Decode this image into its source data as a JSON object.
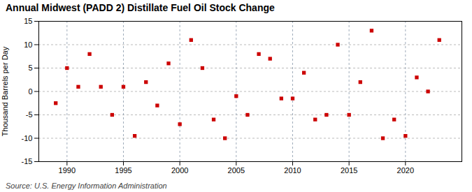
{
  "chart_data": {
    "type": "scatter",
    "title": "Annual Midwest (PADD 2) Distillate Fuel Oil Stock Change",
    "ylabel": "Thousand Barrels per Day",
    "source": "Source: U.S. Energy Information Administration",
    "x": [
      1989,
      1990,
      1991,
      1992,
      1993,
      1994,
      1995,
      1996,
      1997,
      1998,
      1999,
      2000,
      2001,
      2002,
      2003,
      2004,
      2005,
      2006,
      2007,
      2008,
      2009,
      2010,
      2011,
      2012,
      2013,
      2014,
      2015,
      2016,
      2017,
      2018,
      2019,
      2020,
      2021,
      2022,
      2023
    ],
    "values": [
      -2.5,
      5.0,
      1.0,
      8.0,
      1.0,
      -5.0,
      1.0,
      -9.5,
      2.0,
      -3.0,
      6.0,
      -7.0,
      11.0,
      5.0,
      -6.0,
      -10.0,
      -1.0,
      -5.0,
      8.0,
      7.0,
      -1.5,
      -1.5,
      4.0,
      -6.0,
      -5.0,
      10.0,
      -5.0,
      2.0,
      13.0,
      -10.0,
      -6.0,
      -9.5,
      3.0,
      0.0,
      11.0
    ],
    "color": "#cc0000",
    "marker": "square",
    "xlim": [
      1987.5,
      2025.0
    ],
    "ylim": [
      -15,
      15
    ],
    "xticks": [
      1990,
      1995,
      2000,
      2005,
      2010,
      2015,
      2020
    ],
    "yticks": [
      -15,
      -10,
      -5,
      0,
      5,
      10,
      15
    ],
    "grid": true
  }
}
